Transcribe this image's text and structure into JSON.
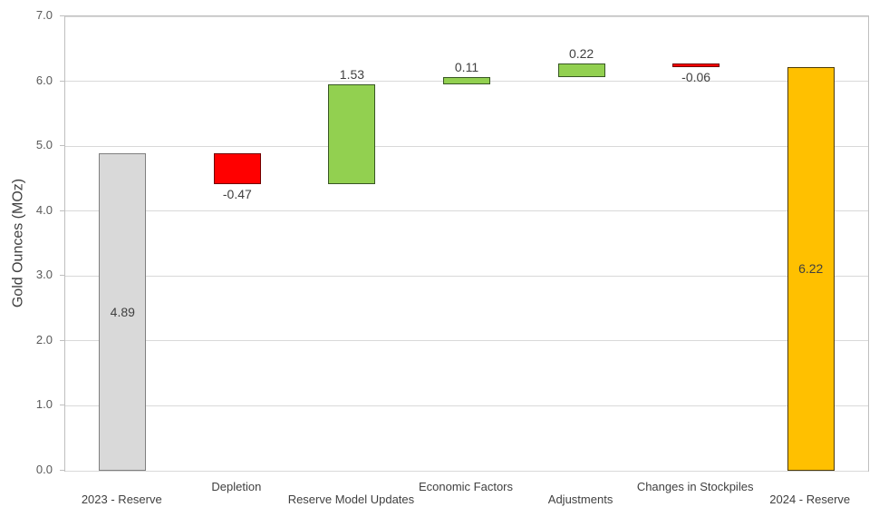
{
  "chart_data": {
    "type": "bar",
    "subtype": "waterfall",
    "title": "",
    "ylabel": "Gold Ounces (MOz)",
    "xlabel": "",
    "ylim": [
      0,
      7
    ],
    "grid": "horizontal",
    "legend": "none",
    "yticks": [
      {
        "value": 0,
        "label": "0.0"
      },
      {
        "value": 1,
        "label": "1.0"
      },
      {
        "value": 2,
        "label": "2.0"
      },
      {
        "value": 3,
        "label": "3.0"
      },
      {
        "value": 4,
        "label": "4.0"
      },
      {
        "value": 5,
        "label": "5.0"
      },
      {
        "value": 6,
        "label": "6.0"
      },
      {
        "value": 7,
        "label": "7.0"
      }
    ],
    "categories": [
      "2023 - Reserve",
      "Depletion",
      "Reserve Model Updates",
      "Economic Factors",
      "Adjustments",
      "Changes in Stockpiles",
      "2024 - Reserve"
    ],
    "bars": [
      {
        "category": "2023 - Reserve",
        "value": 4.89,
        "display": "4.89",
        "base": 0,
        "end": 4.89,
        "fill": "#d9d9d9",
        "border": "#7f7f7f",
        "label_pos": "inside",
        "label_row": "lower"
      },
      {
        "category": "Depletion",
        "value": -0.47,
        "display": "-0.47",
        "base": 4.42,
        "end": 4.89,
        "fill": "#ff0000",
        "border": "#700000",
        "label_pos": "below",
        "label_row": "upper"
      },
      {
        "category": "Reserve Model Updates",
        "value": 1.53,
        "display": "1.53",
        "base": 4.42,
        "end": 5.95,
        "fill": "#92d050",
        "border": "#375623",
        "label_pos": "above",
        "label_row": "lower"
      },
      {
        "category": "Economic Factors",
        "value": 0.11,
        "display": "0.11",
        "base": 5.95,
        "end": 6.06,
        "fill": "#92d050",
        "border": "#375623",
        "label_pos": "above",
        "label_row": "upper"
      },
      {
        "category": "Adjustments",
        "value": 0.22,
        "display": "0.22",
        "base": 6.06,
        "end": 6.28,
        "fill": "#92d050",
        "border": "#375623",
        "label_pos": "above",
        "label_row": "lower"
      },
      {
        "category": "Changes in Stockpiles",
        "value": -0.06,
        "display": "-0.06",
        "base": 6.22,
        "end": 6.28,
        "fill": "#ff0000",
        "border": "#700000",
        "label_pos": "below",
        "label_row": "upper"
      },
      {
        "category": "2024 - Reserve",
        "value": 6.22,
        "display": "6.22",
        "base": 0,
        "end": 6.22,
        "fill": "#ffc000",
        "border": "#4d3a00",
        "label_pos": "inside",
        "label_row": "lower"
      }
    ],
    "colors": {
      "start_end_total": "#d9d9d9",
      "final_total": "#ffc000",
      "increase": "#92d050",
      "decrease": "#ff0000",
      "gridline": "#d9d9d9",
      "plot_border": "#bfbfbf",
      "label_text": "#404040",
      "tick_text": "#595959"
    }
  }
}
